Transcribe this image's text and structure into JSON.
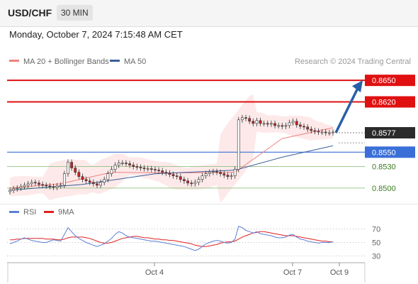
{
  "header": {
    "pair": "USD/CHF",
    "timeframe": "30 MIN"
  },
  "subtitle": "Monday, October 7, 2024 7:15:48 AM CET",
  "source": "Research © 2024 Trading Central",
  "legend": [
    {
      "name": "MA 20 + Bollinger Bands",
      "color": "#f08080"
    },
    {
      "name": "MA 50",
      "color": "#3a5f9a"
    }
  ],
  "rsi_legend": [
    {
      "name": "RSI",
      "color": "#5b7fd6"
    },
    {
      "name": "9MA",
      "color": "#e02020"
    }
  ],
  "colors": {
    "resistance": "#e01010",
    "support": "#3a6fd8",
    "target": "#3a7d20",
    "arrow": "#2a5fa8",
    "up": "#ffffff",
    "down": "#cc2222"
  },
  "chart_data": [
    {
      "type": "line",
      "title": "USD/CHF",
      "ylim": [
        0.849,
        0.8665
      ],
      "x_ticks": [
        "Oct 4",
        "Oct 7",
        "Oct 9"
      ],
      "current_price": "0.8577",
      "levels": [
        {
          "value": 0.865,
          "label": "0.8650",
          "kind": "resistance"
        },
        {
          "value": 0.862,
          "label": "0.8620",
          "kind": "resistance"
        },
        {
          "value": 0.855,
          "label": "0.8550",
          "kind": "pivot"
        },
        {
          "value": 0.853,
          "label": "0.8530",
          "kind": "support"
        },
        {
          "value": 0.85,
          "label": "0.8500",
          "kind": "support"
        }
      ],
      "close_series": [
        0.8497,
        0.8499,
        0.85,
        0.8502,
        0.8504,
        0.8506,
        0.8508,
        0.8507,
        0.8505,
        0.8504,
        0.8503,
        0.8502,
        0.8501,
        0.8503,
        0.8504,
        0.852,
        0.8536,
        0.8528,
        0.8522,
        0.8516,
        0.8512,
        0.851,
        0.8508,
        0.8506,
        0.8504,
        0.8508,
        0.8512,
        0.852,
        0.8526,
        0.8532,
        0.8535,
        0.8535,
        0.8534,
        0.8532,
        0.853,
        0.8529,
        0.8528,
        0.8527,
        0.8527,
        0.8526,
        0.8525,
        0.8524,
        0.8522,
        0.8521,
        0.8519,
        0.8517,
        0.8516,
        0.8512,
        0.851,
        0.8507,
        0.8506,
        0.8508,
        0.8512,
        0.8517,
        0.852,
        0.8522,
        0.8523,
        0.8522,
        0.852,
        0.8518,
        0.8516,
        0.8517,
        0.8526,
        0.8595,
        0.8598,
        0.8597,
        0.8593,
        0.859,
        0.8594,
        0.859,
        0.859,
        0.8589,
        0.859,
        0.8587,
        0.8587,
        0.8586,
        0.8587,
        0.8591,
        0.8593,
        0.8588,
        0.8586,
        0.8585,
        0.8582,
        0.858,
        0.8579,
        0.8578,
        0.8578,
        0.8577,
        0.8577,
        0.8578
      ],
      "ma50": [
        {
          "i": 0,
          "v": 0.8497
        },
        {
          "i": 20,
          "v": 0.8505
        },
        {
          "i": 40,
          "v": 0.852
        },
        {
          "i": 62,
          "v": 0.8525
        },
        {
          "i": 75,
          "v": 0.8543
        },
        {
          "i": 89,
          "v": 0.8559
        }
      ],
      "ma20": [
        {
          "i": 0,
          "v": 0.85
        },
        {
          "i": 14,
          "v": 0.8506
        },
        {
          "i": 28,
          "v": 0.8522
        },
        {
          "i": 45,
          "v": 0.8521
        },
        {
          "i": 62,
          "v": 0.8522
        },
        {
          "i": 75,
          "v": 0.8569
        },
        {
          "i": 89,
          "v": 0.8584
        }
      ],
      "projection": {
        "from": 0.8577,
        "to": 0.865
      }
    },
    {
      "type": "line",
      "title": "RSI",
      "ylim": [
        20,
        80
      ],
      "ticks": [
        70,
        50,
        30
      ],
      "rsi": [
        48,
        50,
        52,
        55,
        57,
        55,
        53,
        52,
        51,
        50,
        50,
        52,
        54,
        53,
        52,
        62,
        72,
        66,
        60,
        56,
        53,
        50,
        48,
        46,
        44,
        46,
        48,
        52,
        56,
        62,
        66,
        64,
        60,
        58,
        57,
        56,
        55,
        54,
        53,
        52,
        52,
        51,
        50,
        49,
        48,
        47,
        46,
        45,
        44,
        42,
        40,
        38,
        40,
        44,
        48,
        50,
        52,
        53,
        52,
        50,
        49,
        50,
        55,
        74,
        72,
        68,
        66,
        64,
        66,
        63,
        62,
        61,
        60,
        58,
        57,
        57,
        58,
        61,
        62,
        58,
        55,
        54,
        52,
        51,
        50,
        49,
        50,
        50,
        50,
        51
      ],
      "ma9": [
        54,
        54,
        55,
        55,
        56,
        56,
        56,
        56,
        56,
        56,
        55,
        55,
        55,
        54,
        54,
        55,
        57,
        58,
        58,
        58,
        58,
        57,
        56,
        54,
        52,
        50,
        49,
        49,
        50,
        52,
        54,
        56,
        57,
        58,
        59,
        59,
        58,
        57,
        57,
        56,
        55,
        55,
        54,
        54,
        53,
        53,
        52,
        51,
        50,
        49,
        48,
        46,
        45,
        44,
        44,
        45,
        46,
        47,
        49,
        50,
        51,
        51,
        52,
        55,
        58,
        60,
        62,
        64,
        65,
        66,
        66,
        65,
        64,
        63,
        62,
        61,
        60,
        60,
        60,
        59,
        58,
        57,
        56,
        55,
        54,
        53,
        52,
        52,
        51,
        51
      ]
    }
  ]
}
